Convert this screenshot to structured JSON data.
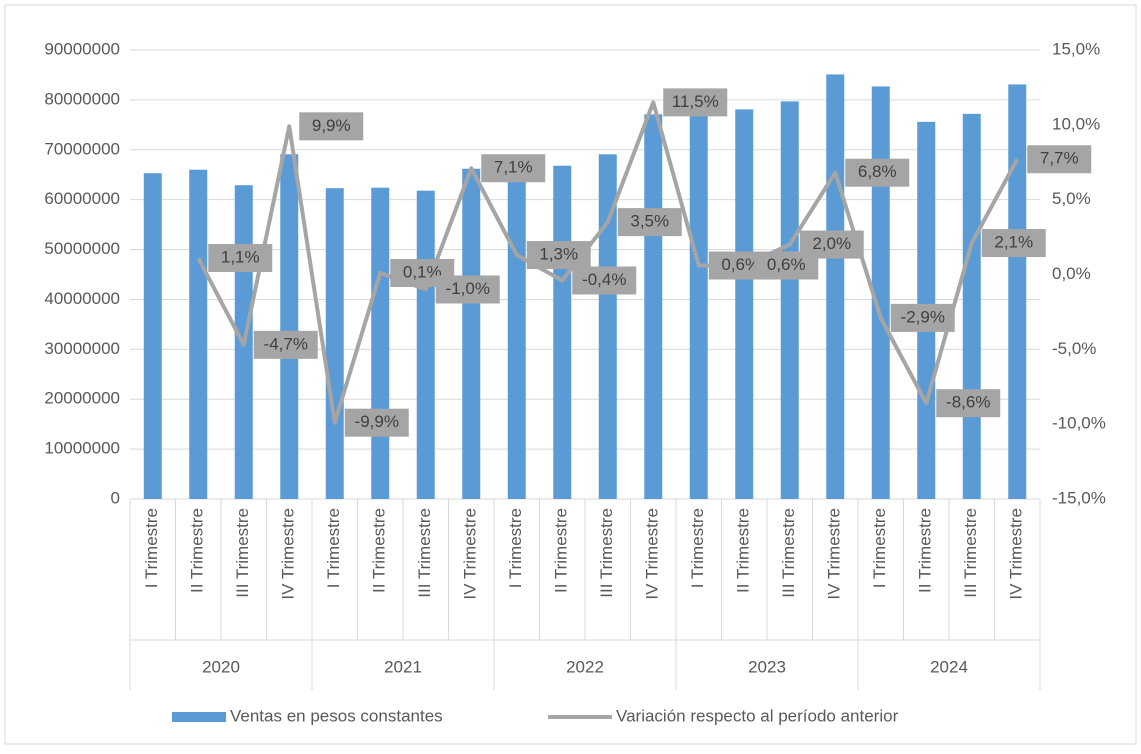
{
  "chart_data": {
    "type": "bar-line",
    "categories": [
      "I Trimestre",
      "II Trimestre",
      "III Trimestre",
      "IV Trimestre",
      "I Trimestre",
      "II Trimestre",
      "III Trimestre",
      "IV Trimestre",
      "I Trimestre",
      "II Trimestre",
      "III Trimestre",
      "IV Trimestre",
      "I Trimestre",
      "II Trimestre",
      "III Trimestre",
      "IV Trimestre",
      "I Trimestre",
      "II Trimestre",
      "III Trimestre",
      "IV Trimestre"
    ],
    "years": [
      "2020",
      "2021",
      "2022",
      "2023",
      "2024"
    ],
    "series": [
      {
        "name": "Ventas en pesos constantes",
        "type": "bar",
        "color": "#5b9bd5",
        "values": [
          65300000,
          66000000,
          62900000,
          69100000,
          62300000,
          62400000,
          61800000,
          66200000,
          67000000,
          66800000,
          69100000,
          77100000,
          77600000,
          78100000,
          79700000,
          85100000,
          82700000,
          75600000,
          77200000,
          83100000
        ]
      },
      {
        "name": "Variación respecto al período anterior",
        "type": "line",
        "axis": "y2",
        "color": "#a5a5a5",
        "values": [
          null,
          1.1,
          -4.7,
          9.9,
          -9.9,
          0.1,
          -1.0,
          7.1,
          1.3,
          -0.4,
          3.5,
          11.5,
          0.6,
          0.6,
          2.0,
          6.8,
          -2.9,
          -8.6,
          2.1,
          7.7
        ],
        "value_labels": [
          null,
          "1,1%",
          "-4,7%",
          "9,9%",
          "-9,9%",
          "0,1%",
          "-1,0%",
          "7,1%",
          "1,3%",
          "-0,4%",
          "3,5%",
          "11,5%",
          "0,6%",
          "0,6%",
          "2,0%",
          "6,8%",
          "-2,9%",
          "-8,6%",
          "2,1%",
          "7,7%"
        ]
      }
    ],
    "ylim": [
      0,
      90000000
    ],
    "yticks": [
      0,
      10000000,
      20000000,
      30000000,
      40000000,
      50000000,
      60000000,
      70000000,
      80000000,
      90000000
    ],
    "y2lim": [
      -15,
      15
    ],
    "y2ticks": [
      {
        "value": -15,
        "label": "-15,0%"
      },
      {
        "value": -10,
        "label": "-10,0%"
      },
      {
        "value": -5,
        "label": "-5,0%"
      },
      {
        "value": 0,
        "label": "0,0%"
      },
      {
        "value": 5,
        "label": "5,0%"
      },
      {
        "value": 10,
        "label": "10,0%"
      },
      {
        "value": 15,
        "label": "15,0%"
      }
    ],
    "grid": true,
    "legend": "bottom"
  }
}
